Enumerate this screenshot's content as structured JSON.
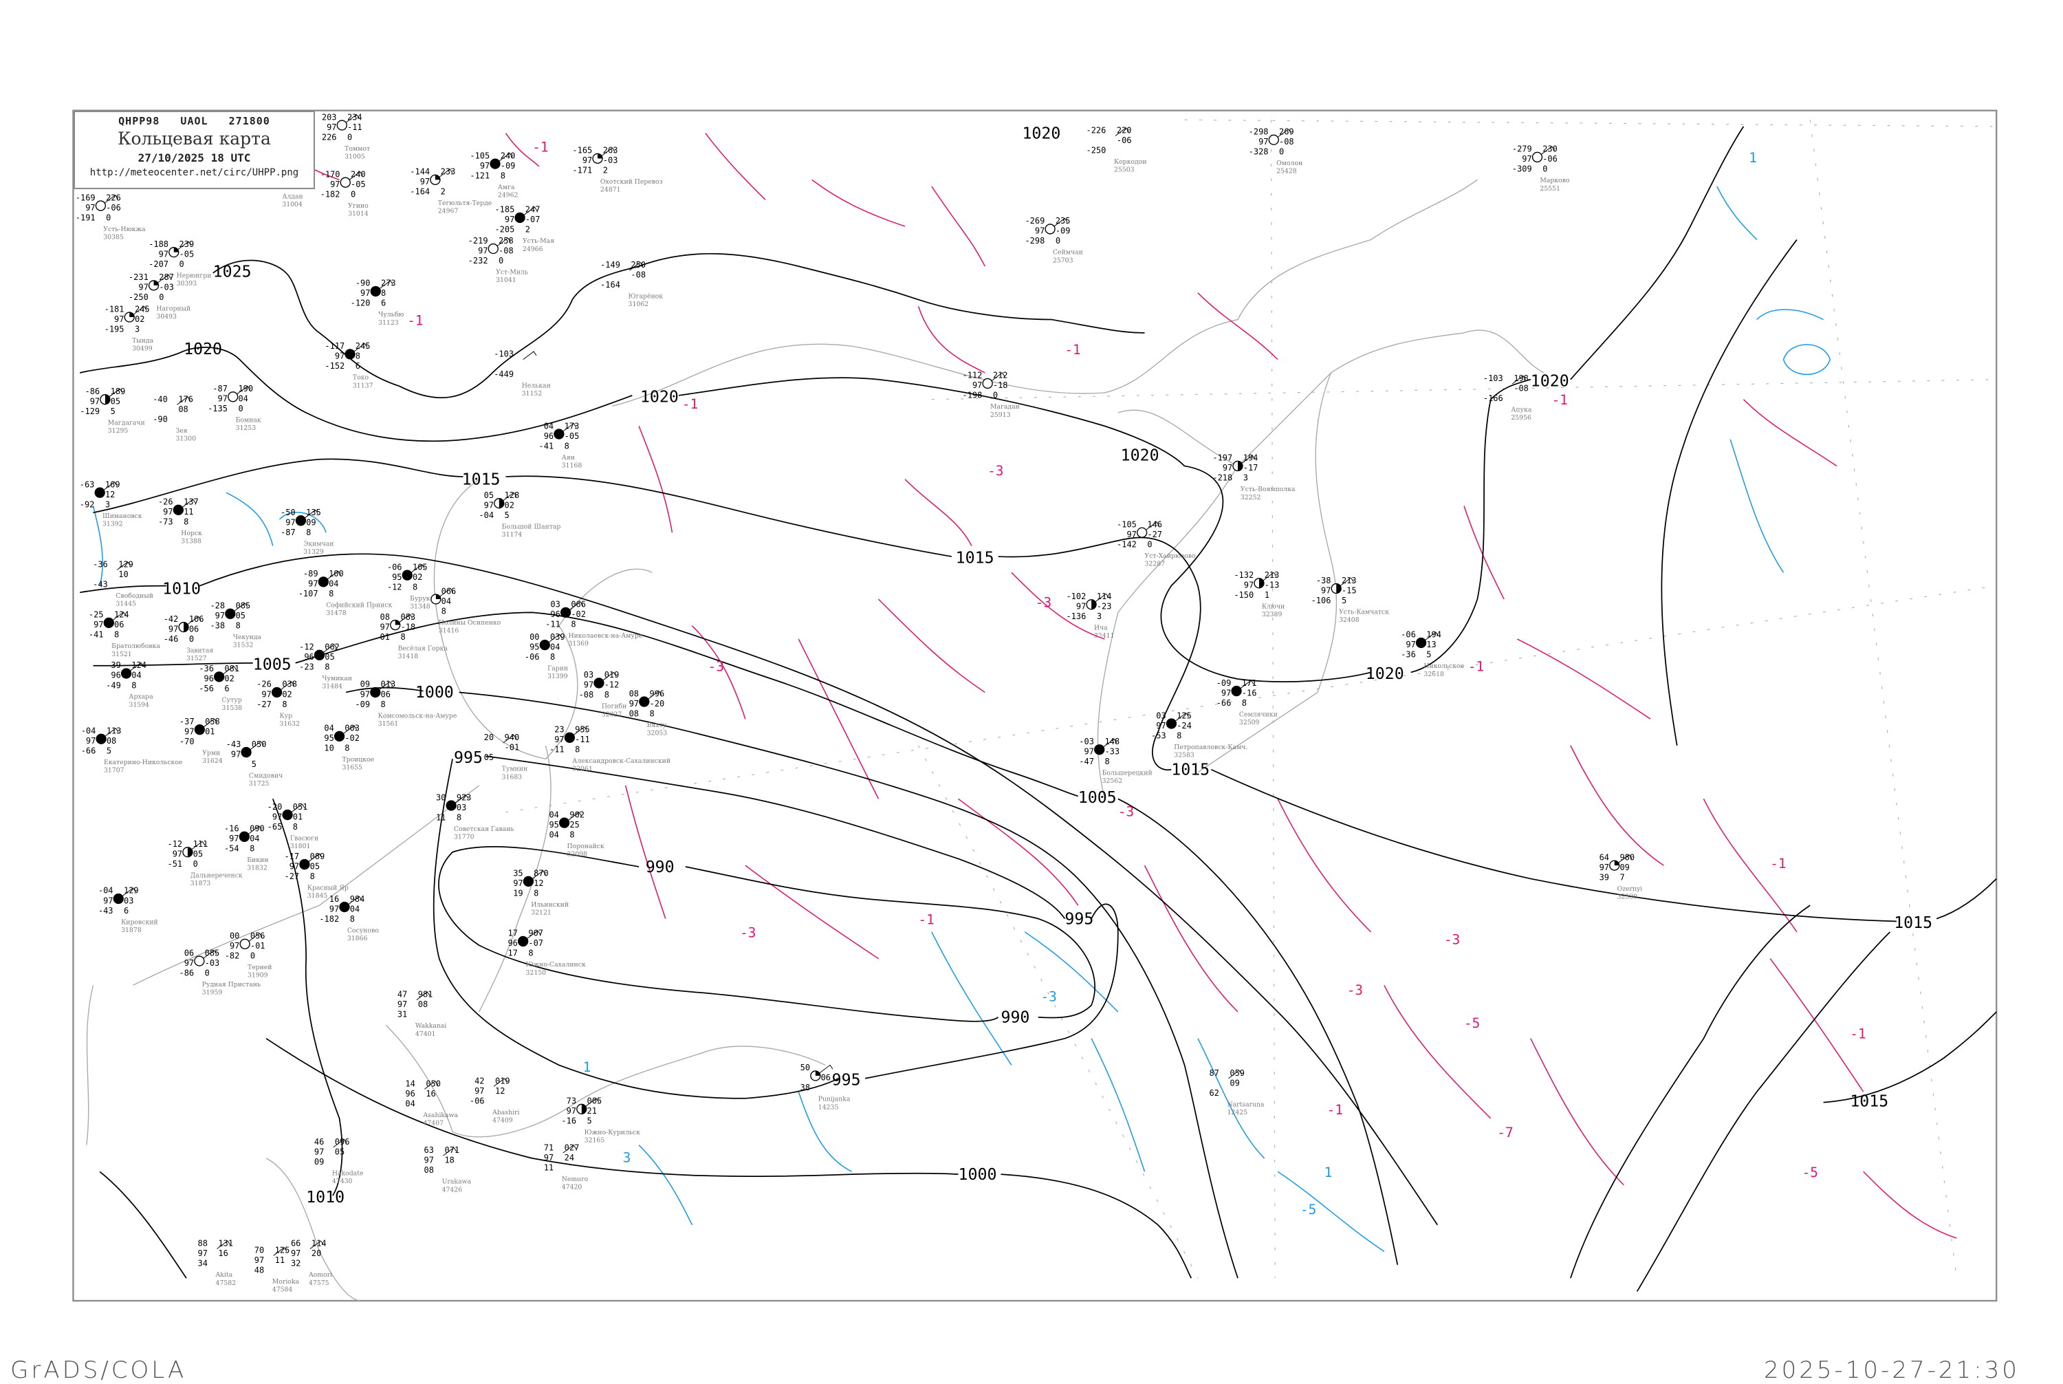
{
  "header": {
    "code_line": "QHPP98   UAOL   271800",
    "title": "Кольцевая карта",
    "datetime": "27/10/2025 18 UTC",
    "url": "http://meteocenter.net/circ/UHPP.png"
  },
  "footer": {
    "left": "GrADS/COLA",
    "right": "2025-10-27-21:30"
  },
  "colors": {
    "isobar": "#000000",
    "isotherm_negative": "#e0156f",
    "isotherm_positive": "#1a9be8",
    "coastline": "#a8a8a8"
  },
  "isobar_labels": [
    "1025",
    "1020",
    "1020",
    "1020",
    "1020",
    "1020",
    "1020",
    "1015",
    "1015",
    "1015",
    "1015",
    "1015",
    "1010",
    "1010",
    "1005",
    "1005",
    "1000",
    "1000",
    "995",
    "995",
    "995",
    "990",
    "990"
  ],
  "isotherm_labels_negative": [
    "-1",
    "-1",
    "-1",
    "-1",
    "-3",
    "-3",
    "-3",
    "-3",
    "-3",
    "-1",
    "-3",
    "-3",
    "-5",
    "-7",
    "-1",
    "-1",
    "-1",
    "-5",
    "-1",
    "-1"
  ],
  "isotherm_labels_positive": [
    "-3",
    "1",
    "3",
    "1",
    "-5",
    "1"
  ],
  "stations": [
    {
      "name": "Усть-Нюкжа",
      "id": "30385",
      "cover": "empty",
      "obs": [
        "-169",
        "97",
        "-191",
        "226",
        "-06",
        "0"
      ]
    },
    {
      "name": "Нерюнгри",
      "id": "30393",
      "cover": "quarter",
      "obs": [
        "-188",
        "97",
        "-207",
        "239",
        "-05",
        "0"
      ]
    },
    {
      "name": "Нагорный",
      "id": "30493",
      "cover": "quarter",
      "obs": [
        "-231",
        "97",
        "-250",
        "287",
        "-03",
        "0"
      ]
    },
    {
      "name": "Тында",
      "id": "30499",
      "cover": "quarter",
      "obs": [
        "-181",
        "97",
        "-195",
        "245",
        "02",
        "3"
      ]
    },
    {
      "name": "Магдагачи",
      "id": "31295",
      "cover": "half",
      "obs": [
        "-86",
        "97",
        "-129",
        "189",
        "05",
        "5"
      ]
    },
    {
      "name": "Зея",
      "id": "31300",
      "cover": "none",
      "obs": [
        "-40",
        "",
        "-90",
        "176",
        "08",
        ""
      ]
    },
    {
      "name": "Бомнак",
      "id": "31253",
      "cover": "empty",
      "obs": [
        "-87",
        "97",
        "-135",
        "190",
        "04",
        "0"
      ]
    },
    {
      "name": "Алдан",
      "id": "31004",
      "cover": "none",
      "obs": [
        "",
        "",
        "",
        "",
        "",
        ""
      ]
    },
    {
      "name": "Томмот",
      "id": "31005",
      "cover": "empty",
      "obs": [
        "203",
        "97",
        "226",
        "234",
        "-11",
        "0"
      ]
    },
    {
      "name": "Угино",
      "id": "31014",
      "cover": "empty",
      "obs": [
        "-170",
        "97",
        "-182",
        "240",
        "-05",
        "0"
      ]
    },
    {
      "name": "Чульбю",
      "id": "31123",
      "cover": "full",
      "obs": [
        "-90",
        "97",
        "-120",
        "273",
        "8",
        "6"
      ]
    },
    {
      "name": "Токо",
      "id": "31137",
      "cover": "full",
      "obs": [
        "-117",
        "97",
        "-152",
        "245",
        "8",
        "6"
      ]
    },
    {
      "name": "Тегюльтя-Терде",
      "id": "24967",
      "cover": "quarter",
      "obs": [
        "-144",
        "97",
        "-164",
        "233",
        "",
        "2"
      ]
    },
    {
      "name": "Амга",
      "id": "24962",
      "cover": "full",
      "obs": [
        "-105",
        "97",
        "-121",
        "240",
        "-09",
        "8"
      ]
    },
    {
      "name": "Усть-Мая",
      "id": "24966",
      "cover": "full",
      "obs": [
        "-185",
        "97",
        "-205",
        "247",
        "-07",
        "2"
      ]
    },
    {
      "name": "Уст-Миль",
      "id": "31041",
      "cover": "empty",
      "obs": [
        "-219",
        "97",
        "-232",
        "258",
        "-08",
        "0"
      ]
    },
    {
      "name": "Охотский Перевоз",
      "id": "24871",
      "cover": "quarter",
      "obs": [
        "-165",
        "97",
        "-171",
        "263",
        "-03",
        "2"
      ]
    },
    {
      "name": "Югарёнок",
      "id": "31062",
      "cover": "none",
      "obs": [
        "-149",
        "",
        "-164",
        "250",
        "-08",
        ""
      ]
    },
    {
      "name": "Нелькан",
      "id": "31152",
      "cover": "none",
      "obs": [
        "-103",
        "",
        "-449",
        "",
        "",
        ""
      ]
    },
    {
      "name": "Коркодон",
      "id": "25503",
      "cover": "none",
      "obs": [
        "-226",
        "",
        "-250",
        "220",
        "-06",
        ""
      ]
    },
    {
      "name": "Сеймчан",
      "id": "25703",
      "cover": "empty",
      "obs": [
        "-269",
        "97",
        "-298",
        "235",
        "-09",
        "0"
      ]
    },
    {
      "name": "Омолон",
      "id": "25428",
      "cover": "empty",
      "obs": [
        "-298",
        "97",
        "-328",
        "269",
        "-08",
        "0"
      ]
    },
    {
      "name": "Марково",
      "id": "25551",
      "cover": "empty",
      "obs": [
        "-279",
        "97",
        "-309",
        "230",
        "-06",
        "0"
      ]
    },
    {
      "name": "Магадан",
      "id": "25913",
      "cover": "empty",
      "obs": [
        "-112",
        "97",
        "-198",
        "212",
        "-18",
        "0"
      ]
    },
    {
      "name": "Апука",
      "id": "25956",
      "cover": "none",
      "obs": [
        "-103",
        "",
        "-166",
        "198",
        "-08",
        ""
      ]
    },
    {
      "name": "Аян",
      "id": "31168",
      "cover": "full",
      "obs": [
        "04",
        "96",
        "-41",
        "173",
        "-05",
        "8"
      ]
    },
    {
      "name": "Большой Шантар",
      "id": "31174",
      "cover": "half",
      "obs": [
        "05",
        "97",
        "-04",
        "128",
        "02",
        "5"
      ]
    },
    {
      "name": "Шимановск",
      "id": "31392",
      "cover": "full",
      "obs": [
        "-63",
        "",
        "-92",
        "169",
        "12",
        "3"
      ]
    },
    {
      "name": "Свободный",
      "id": "31445",
      "cover": "none",
      "obs": [
        "-36",
        "",
        "-43",
        "129",
        "10",
        ""
      ]
    },
    {
      "name": "Норск",
      "id": "31388",
      "cover": "full",
      "obs": [
        "-26",
        "97",
        "-73",
        "137",
        "11",
        "8"
      ]
    },
    {
      "name": "Экимчан",
      "id": "31329",
      "cover": "full",
      "obs": [
        "-50",
        "97",
        "-87",
        "135",
        "09",
        "8"
      ]
    },
    {
      "name": "Бурукан",
      "id": "31348",
      "cover": "full",
      "obs": [
        "-06",
        "95",
        "-12",
        "105",
        "02",
        "8"
      ]
    },
    {
      "name": "Софийский Прииск",
      "id": "31478",
      "cover": "full",
      "obs": [
        "-89",
        "97",
        "-107",
        "100",
        "04",
        "8"
      ]
    },
    {
      "name": "Братолюбовка",
      "id": "31521",
      "cover": "full",
      "obs": [
        "-25",
        "97",
        "-41",
        "124",
        "06",
        "8"
      ]
    },
    {
      "name": "Завитая",
      "id": "31527",
      "cover": "half",
      "obs": [
        "-42",
        "97",
        "-46",
        "106",
        "06",
        "0"
      ]
    },
    {
      "name": "Чекунда",
      "id": "31532",
      "cover": "full",
      "obs": [
        "-28",
        "97",
        "-38",
        "085",
        "05",
        "8"
      ]
    },
    {
      "name": "Архара",
      "id": "31594",
      "cover": "full",
      "obs": [
        "-39",
        "96",
        "-49",
        "124",
        "04",
        "8"
      ]
    },
    {
      "name": "Сутур",
      "id": "31538",
      "cover": "full",
      "obs": [
        "-36",
        "96",
        "-56",
        "081",
        "02",
        "6"
      ]
    },
    {
      "name": "Весёлая Горка",
      "id": "31418",
      "cover": "quarter",
      "obs": [
        "08",
        "97",
        "01",
        "083",
        "-18",
        "8"
      ]
    },
    {
      "name": "Полины Осипенко",
      "id": "31416",
      "cover": "quarter",
      "obs": [
        "",
        "",
        "",
        "066",
        "04",
        "8"
      ]
    },
    {
      "name": "Чумикан",
      "id": "31484",
      "cover": "full",
      "obs": [
        "-12",
        "96",
        "-23",
        "062",
        "05",
        "8"
      ]
    },
    {
      "name": "Николаевск-на-Амуре",
      "id": "31369",
      "cover": "full",
      "obs": [
        "03",
        "96",
        "-11",
        "066",
        "-02",
        "8"
      ]
    },
    {
      "name": "Гарин",
      "id": "31399",
      "cover": "full",
      "obs": [
        "00",
        "95",
        "-06",
        "039",
        "04",
        "8"
      ]
    },
    {
      "name": "Кур",
      "id": "31632",
      "cover": "full",
      "obs": [
        "-26",
        "97",
        "-27",
        "038",
        "02",
        "8"
      ]
    },
    {
      "name": "Комсомольск-на-Амуре",
      "id": "31561",
      "cover": "full",
      "obs": [
        "09",
        "97",
        "-09",
        "013",
        "06",
        "8"
      ]
    },
    {
      "name": "Погиби",
      "id": "32027",
      "cover": "full",
      "obs": [
        "03",
        "97",
        "-08",
        "019",
        "-12",
        "8"
      ]
    },
    {
      "name": "Вяхту",
      "id": "32053",
      "cover": "full",
      "obs": [
        "08",
        "97",
        "08",
        "996",
        "-20",
        "8"
      ]
    },
    {
      "name": "Екатерино-Никольское",
      "id": "31707",
      "cover": "full",
      "obs": [
        "-04",
        "97",
        "-66",
        "113",
        "08",
        "5"
      ]
    },
    {
      "name": "Урми",
      "id": "31624",
      "cover": "full",
      "obs": [
        "-37",
        "97",
        "-70",
        "058",
        "01",
        ""
      ]
    },
    {
      "name": "Смидович",
      "id": "31725",
      "cover": "full",
      "obs": [
        "-43",
        "97",
        "",
        "050",
        "",
        "5"
      ]
    },
    {
      "name": "Троицкое",
      "id": "31655",
      "cover": "full",
      "obs": [
        "04",
        "95",
        "10",
        "003",
        "-02",
        "8"
      ]
    },
    {
      "name": "Александровск-Сахалинский",
      "id": "32061",
      "cover": "full",
      "obs": [
        "23",
        "97",
        "-11",
        "955",
        "-11",
        "8"
      ]
    },
    {
      "name": "Тумнин",
      "id": "31683",
      "cover": "none",
      "obs": [
        "20",
        "",
        "05",
        "940",
        "-01",
        ""
      ]
    },
    {
      "name": "Советская Гавань",
      "id": "31770",
      "cover": "full",
      "obs": [
        "30",
        "",
        "11",
        "923",
        "03",
        "8"
      ]
    },
    {
      "name": "Поронайск",
      "id": "32098",
      "cover": "full",
      "obs": [
        "04",
        "95",
        "04",
        "902",
        "25",
        "8"
      ]
    },
    {
      "name": "Ильинский",
      "id": "32121",
      "cover": "full",
      "obs": [
        "35",
        "97",
        "19",
        "870",
        "12",
        "8"
      ]
    },
    {
      "name": "Южно-Сахалинск",
      "id": "32150",
      "cover": "full",
      "obs": [
        "17",
        "96",
        "17",
        "907",
        "-07",
        "8"
      ]
    },
    {
      "name": "Гвасюги",
      "id": "31801",
      "cover": "full",
      "obs": [
        "-20",
        "97",
        "-65",
        "051",
        "01",
        "8"
      ]
    },
    {
      "name": "Бикин",
      "id": "31832",
      "cover": "full",
      "obs": [
        "-16",
        "97",
        "-54",
        "090",
        "04",
        "8"
      ]
    },
    {
      "name": "Красный Яр",
      "id": "31845",
      "cover": "full",
      "obs": [
        "-17",
        "97",
        "-27",
        "089",
        "05",
        "8"
      ]
    },
    {
      "name": "Дальнереченск",
      "id": "31873",
      "cover": "half",
      "obs": [
        "-12",
        "97",
        "-51",
        "111",
        "05",
        "0"
      ]
    },
    {
      "name": "Кировский",
      "id": "31878",
      "cover": "full",
      "obs": [
        "-04",
        "97",
        "-43",
        "129",
        "03",
        "6"
      ]
    },
    {
      "name": "Сосуново",
      "id": "31866",
      "cover": "full",
      "obs": [
        "16",
        "97",
        "-182",
        "984",
        "04",
        "8"
      ]
    },
    {
      "name": "Терней",
      "id": "31909",
      "cover": "empty",
      "obs": [
        "00",
        "97",
        "-82",
        "056",
        "-01",
        "0"
      ]
    },
    {
      "name": "Рудная Пристань",
      "id": "31959",
      "cover": "empty",
      "obs": [
        "06",
        "97",
        "-86",
        "085",
        "-03",
        "0"
      ]
    },
    {
      "name": "Wakkanai",
      "id": "47401",
      "cover": "none",
      "obs": [
        "47",
        "97",
        "31",
        "981",
        "08",
        ""
      ]
    },
    {
      "name": "Asahikawa",
      "id": "47407",
      "cover": "none",
      "obs": [
        "14",
        "96",
        "04",
        "050",
        "16",
        ""
      ]
    },
    {
      "name": "Abashiri",
      "id": "47409",
      "cover": "none",
      "obs": [
        "42",
        "97",
        "-06",
        "019",
        "12",
        ""
      ]
    },
    {
      "name": "Южно-Курильск",
      "id": "32165",
      "cover": "half",
      "obs": [
        "73",
        "97",
        "-16",
        "005",
        "21",
        "5"
      ]
    },
    {
      "name": "Nemuro",
      "id": "47420",
      "cover": "none",
      "obs": [
        "71",
        "97",
        "11",
        "027",
        "24",
        ""
      ]
    },
    {
      "name": "Urakawa",
      "id": "47426",
      "cover": "none",
      "obs": [
        "63",
        "97",
        "08",
        "071",
        "18",
        ""
      ]
    },
    {
      "name": "Hakodate",
      "id": "47430",
      "cover": "none",
      "obs": [
        "46",
        "97",
        "09",
        "096",
        "05",
        ""
      ]
    },
    {
      "name": "Aomori",
      "id": "47575",
      "cover": "none",
      "obs": [
        "66",
        "97",
        "32",
        "114",
        "20",
        ""
      ]
    },
    {
      "name": "Akita",
      "id": "47582",
      "cover": "none",
      "obs": [
        "88",
        "97",
        "34",
        "131",
        "16",
        ""
      ]
    },
    {
      "name": "Morioka",
      "id": "47584",
      "cover": "none",
      "obs": [
        "70",
        "97",
        "48",
        "125",
        "11",
        ""
      ]
    },
    {
      "name": "Усть-Воямполка",
      "id": "32252",
      "cover": "half",
      "obs": [
        "-197",
        "97",
        "-218",
        "194",
        "-17",
        "3"
      ]
    },
    {
      "name": "Уст-Хайрюзово",
      "id": "32287",
      "cover": "empty",
      "obs": [
        "-105",
        "97",
        "-142",
        "146",
        "-27",
        "0"
      ]
    },
    {
      "name": "Ича",
      "id": "32411",
      "cover": "half",
      "obs": [
        "-102",
        "97",
        "-136",
        "114",
        "-23",
        "3"
      ]
    },
    {
      "name": "Ключи",
      "id": "32389",
      "cover": "half",
      "obs": [
        "-132",
        "97",
        "-150",
        "213",
        "-13",
        "1"
      ]
    },
    {
      "name": "Усть-Камчатск",
      "id": "32408",
      "cover": "half",
      "obs": [
        "-38",
        "97",
        "-106",
        "213",
        "-15",
        "5"
      ]
    },
    {
      "name": "Никольское",
      "id": "32618",
      "cover": "full",
      "obs": [
        "-06",
        "97",
        "-36",
        "194",
        "13",
        "5"
      ]
    },
    {
      "name": "Семлячики",
      "id": "32509",
      "cover": "full",
      "obs": [
        "-09",
        "97",
        "-66",
        "171",
        "-16",
        "8"
      ]
    },
    {
      "name": "Большерецкий",
      "id": "32562",
      "cover": "full",
      "obs": [
        "-03",
        "97",
        "-47",
        "148",
        "-33",
        "8"
      ]
    },
    {
      "name": "Петропавловск-Камч.",
      "id": "32583",
      "cover": "full",
      "obs": [
        "03",
        "97",
        "-53",
        "125",
        "-24",
        "8"
      ]
    },
    {
      "name": "Punijanka",
      "id": "14235",
      "cover": "quarter",
      "obs": [
        "50",
        "",
        "38",
        "",
        "06",
        ""
      ]
    },
    {
      "name": "Nartsaruna",
      "id": "12425",
      "cover": "none",
      "obs": [
        "87",
        "",
        "62",
        "059",
        "09",
        ""
      ]
    },
    {
      "name": "Ozernyi",
      "id": "32530",
      "cover": "quarter",
      "obs": [
        "64",
        "97",
        "39",
        "980",
        "09",
        "7"
      ]
    }
  ]
}
